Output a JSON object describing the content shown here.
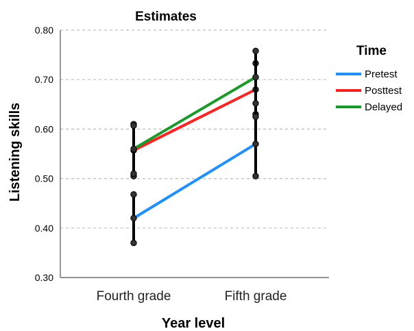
{
  "chart_data": {
    "type": "line",
    "title": "Estimates",
    "xlabel": "Year level",
    "ylabel": "Listening skills",
    "categories": [
      "Fourth grade",
      "Fifth grade"
    ],
    "ylim": [
      0.3,
      0.8
    ],
    "yticks": [
      "0.30",
      "0.40",
      "0.50",
      "0.60",
      "0.70",
      "0.80"
    ],
    "grid": true,
    "legend": {
      "title": "Time",
      "position": "right"
    },
    "series": [
      {
        "name": "Pretest",
        "values": [
          0.42,
          0.57
        ],
        "color": "#1e90ff",
        "error_bars": [
          [
            0.37,
            0.468
          ],
          [
            0.505,
            0.63
          ]
        ]
      },
      {
        "name": "Posttest",
        "values": [
          0.557,
          0.68
        ],
        "color": "#ff2020",
        "error_bars": [
          [
            0.505,
            0.61
          ],
          [
            0.625,
            0.733
          ]
        ]
      },
      {
        "name": "Delayed",
        "values": [
          0.56,
          0.705
        ],
        "color": "#1a9a2a",
        "error_bars": [
          [
            0.51,
            0.607
          ],
          [
            0.652,
            0.758
          ]
        ]
      }
    ],
    "error_bar_color": "#000000"
  }
}
